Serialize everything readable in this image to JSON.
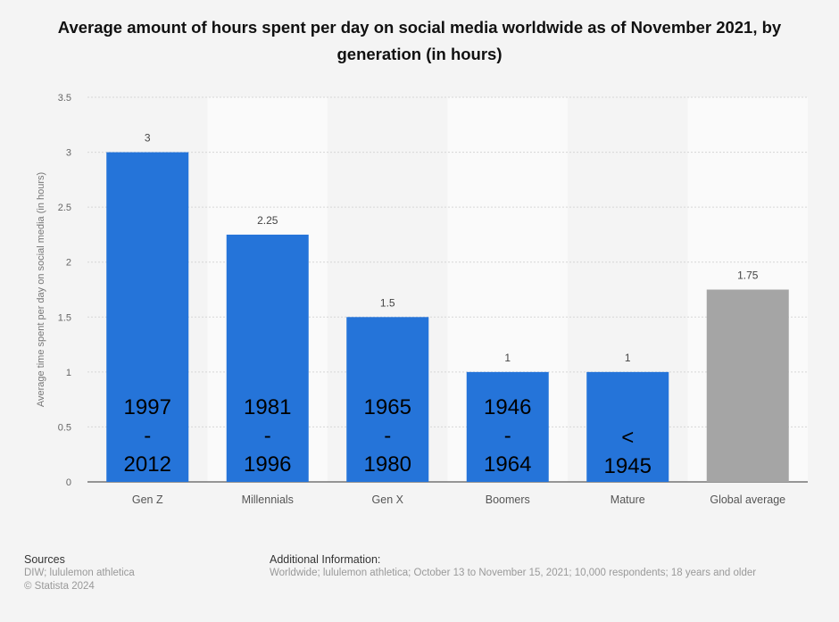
{
  "chart_data": {
    "type": "bar",
    "title": "Average amount of hours spent per day on social media worldwide as of November 2021, by generation (in hours)",
    "xlabel": "",
    "ylabel": "Average time spent per day on social media (in hours)",
    "ylim": [
      0,
      3.5
    ],
    "yticks": [
      "0",
      "0.5",
      "1",
      "1.5",
      "2",
      "2.5",
      "3",
      "3.5"
    ],
    "grid": true,
    "categories": [
      "Gen Z",
      "Millennials",
      "Gen X",
      "Boomers",
      "Mature",
      "Global average"
    ],
    "values": [
      3,
      2.25,
      1.5,
      1,
      1,
      1.75
    ],
    "data_labels": [
      "3",
      "2.25",
      "1.5",
      "1",
      "1",
      "1.75"
    ],
    "annotations": [
      [
        "1997",
        "-",
        "2012"
      ],
      [
        "1981",
        "-",
        "1996"
      ],
      [
        "1965",
        "-",
        "1980"
      ],
      [
        "1946",
        "-",
        "1964"
      ],
      [
        "<",
        "1945"
      ],
      []
    ],
    "colors": [
      "#2574d9",
      "#2574d9",
      "#2574d9",
      "#2574d9",
      "#2574d9",
      "#a5a5a5"
    ]
  },
  "footer": {
    "sources_heading": "Sources",
    "sources": "DIW; lululemon athletica",
    "copyright": "© Statista 2024",
    "additional_heading": "Additional Information:",
    "additional": "Worldwide; lululemon athletica; October 13 to November 15, 2021; 10,000 respondents; 18 years and older"
  }
}
